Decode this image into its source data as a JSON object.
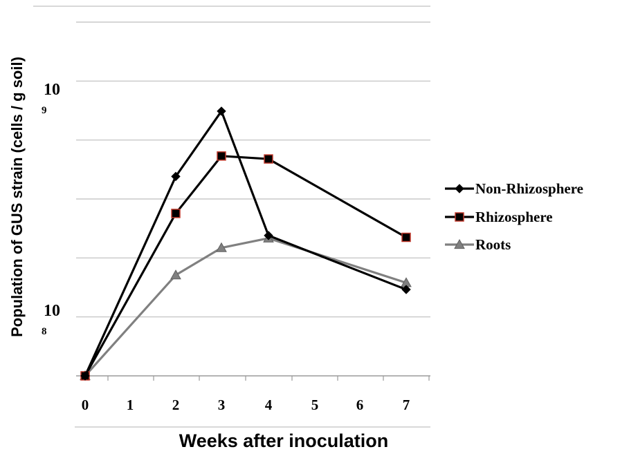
{
  "chart_data": {
    "type": "line",
    "xlabel": "Weeks after inoculation",
    "ylabel": "Population of GUS strain (cells / g soil)",
    "y_scale": "log",
    "ylim": [
      50000000,
      2000000000
    ],
    "categories": [
      "0",
      "1",
      "2",
      "3",
      "4",
      "5",
      "6",
      "7"
    ],
    "y_tick_labels": [
      {
        "value": 1000000000,
        "base": "10",
        "exponent": "9"
      },
      {
        "value": 100000000,
        "base": "10",
        "exponent": "8"
      }
    ],
    "grid": true,
    "legend_position": "right",
    "series": [
      {
        "name": "Non-Rhizosphere",
        "color": "#000000",
        "marker": "diamond",
        "x": [
          "0",
          "2",
          "3",
          "4",
          "7"
        ],
        "values": [
          50000000,
          400000000,
          790000000,
          216000000,
          123000000
        ]
      },
      {
        "name": "Rhizosphere",
        "color": "#000000",
        "marker_fill": "#000000",
        "marker_stroke": "#c0392b",
        "marker": "square",
        "x": [
          "0",
          "2",
          "3",
          "4",
          "7"
        ],
        "values": [
          50000000,
          272000000,
          495000000,
          480000000,
          212000000
        ]
      },
      {
        "name": "Roots",
        "color": "#808080",
        "marker": "triangle",
        "x": [
          "0",
          "2",
          "3",
          "4",
          "7"
        ],
        "values": [
          50000000,
          143000000,
          190000000,
          210000000,
          132000000
        ]
      }
    ]
  }
}
